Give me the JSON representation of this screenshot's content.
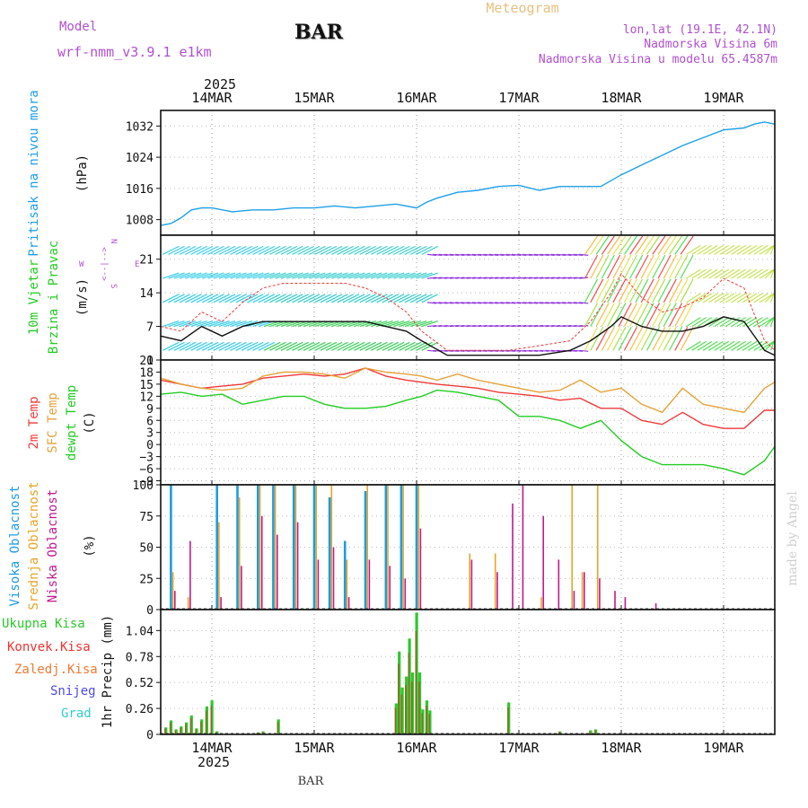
{
  "header": {
    "model_label": "Model",
    "model_name": "wrf-nmm_v3.9.1 e1km",
    "station": "BAR",
    "title": "Meteogram",
    "lonlat": "lon,lat (19.1E, 42.1N)",
    "elevation": "Nadmorska Visina 6m",
    "model_elevation": "Nadmorska Visina u modelu 65.4587m"
  },
  "footer": {
    "station": "BAR",
    "credit": "made by Angel"
  },
  "time_axis": {
    "year": "2025",
    "day_labels": [
      "14MAR",
      "15MAR",
      "16MAR",
      "17MAR",
      "18MAR",
      "19MAR"
    ],
    "day_start": 13.5,
    "day_end": 19.5
  },
  "colors": {
    "pressure": "#1ea0e6",
    "temp2m": "#ee3a3a",
    "sfc_temp": "#e6a23a",
    "dewpt": "#22cc22",
    "cloud_high": "#1e9be0",
    "cloud_mid": "#e6a528",
    "cloud_low": "#c21a8c",
    "precip_total": "#2dc82d",
    "precip_conv": "#ee3333",
    "precip_frz": "#ee7a33",
    "precip_snow": "#4b4be6",
    "precip_grad": "#33cccc",
    "wind_purple": "#8a28d8",
    "label_purple": "#b050d0",
    "label_orange": "#e6c080"
  },
  "panels": {
    "pressure": {
      "name": "Pritisak na nivou mora",
      "unit": "(hPa)",
      "ticks": [
        "1008",
        "1016",
        "1024",
        "1032"
      ]
    },
    "wind": {
      "name1": "10m Vjetar",
      "name2": "Brzina i Pravac",
      "unit": "(m/s)",
      "ticks": [
        "0",
        "7",
        "14",
        "21"
      ],
      "compass_w": "W",
      "compass_e": "E",
      "compass_n": "N",
      "compass_s": "S",
      "compass_mid": "<--|-->"
    },
    "temp": {
      "name1": "2m Temp",
      "name2": "SFC Temp",
      "name3": "dewpt Temp",
      "unit": "(C)",
      "ticks": [
        "−9",
        "−6",
        "−3",
        "0",
        "3",
        "6",
        "9",
        "12",
        "15",
        "18",
        "21"
      ]
    },
    "cloud": {
      "name1": "Visoka Oblacnost",
      "name2": "Srednja Oblacnost",
      "name3": "Niska Oblacnost",
      "unit": "(%)",
      "ticks": [
        "0",
        "25",
        "50",
        "75",
        "100"
      ]
    },
    "precip": {
      "name": "1hr Precip (mm)",
      "ticks": [
        "0",
        "0.26",
        "0.52",
        "0.78",
        "1.04"
      ],
      "legend": [
        "Ukupna Kisa",
        "Konvek.Kisa",
        "Zaledj.Kisa",
        "Snijeg",
        "Grad"
      ]
    }
  },
  "chart_data": [
    {
      "type": "line",
      "title": "Pritisak na nivou mora",
      "ylabel": "(hPa)",
      "ylim": [
        1004,
        1036
      ],
      "x": [
        13.5,
        13.6,
        13.7,
        13.8,
        13.9,
        14.0,
        14.2,
        14.4,
        14.6,
        14.8,
        15.0,
        15.2,
        15.4,
        15.6,
        15.8,
        16.0,
        16.1,
        16.2,
        16.4,
        16.6,
        16.8,
        17.0,
        17.2,
        17.4,
        17.6,
        17.8,
        18.0,
        18.2,
        18.4,
        18.6,
        18.8,
        19.0,
        19.2,
        19.3,
        19.4,
        19.5
      ],
      "series": [
        {
          "values": [
            1006.5,
            1007,
            1008.5,
            1010.5,
            1011,
            1011,
            1010,
            1010.5,
            1010.5,
            1011,
            1011,
            1011.5,
            1011,
            1011.5,
            1012,
            1011,
            1012.5,
            1013.5,
            1015,
            1015.5,
            1016.5,
            1016.8,
            1015.5,
            1016.5,
            1016.5,
            1016.5,
            1019.5,
            1022,
            1024.5,
            1027,
            1029,
            1031,
            1031.5,
            1032.5,
            1033,
            1032.5
          ]
        }
      ]
    },
    {
      "type": "line",
      "title": "10m Vjetar Brzina i Pravac",
      "ylabel": "(m/s)",
      "ylim": [
        0,
        26
      ],
      "x": [
        13.5,
        13.7,
        13.9,
        14.1,
        14.3,
        14.5,
        14.7,
        14.9,
        15.1,
        15.3,
        15.5,
        15.7,
        15.9,
        16.05,
        16.3,
        16.6,
        16.9,
        17.2,
        17.5,
        17.7,
        17.9,
        18.0,
        18.2,
        18.4,
        18.6,
        18.8,
        19.0,
        19.2,
        19.4,
        19.5
      ],
      "series": [
        {
          "name": "speed",
          "values": [
            5,
            4,
            7,
            5,
            7,
            8,
            8,
            8,
            8,
            8,
            8,
            7,
            6,
            4,
            1,
            1,
            1,
            1,
            2,
            4,
            7,
            9,
            7,
            6,
            6,
            7,
            9,
            8,
            2,
            1
          ]
        },
        {
          "name": "gust",
          "values": [
            7,
            6,
            10,
            8,
            12,
            15,
            16,
            16,
            16,
            16,
            15,
            13,
            10,
            6,
            2,
            2,
            2,
            3,
            4,
            8,
            14,
            18,
            13,
            10,
            11,
            13,
            17,
            15,
            4,
            2
          ]
        }
      ]
    },
    {
      "type": "line",
      "title": "2m Temp / SFC Temp / dewpt Temp",
      "ylabel": "(C)",
      "ylim": [
        -10,
        21
      ],
      "x": [
        13.5,
        13.7,
        13.9,
        14.1,
        14.3,
        14.5,
        14.7,
        14.9,
        15.1,
        15.3,
        15.5,
        15.7,
        15.9,
        16.05,
        16.2,
        16.4,
        16.6,
        16.8,
        17.0,
        17.2,
        17.4,
        17.6,
        17.8,
        18.0,
        18.2,
        18.4,
        18.6,
        18.8,
        19.0,
        19.2,
        19.4,
        19.5
      ],
      "series": [
        {
          "name": "2m Temp",
          "values": [
            16,
            15,
            14,
            14.5,
            15,
            16.5,
            17,
            17.5,
            17,
            17.5,
            19,
            17,
            16,
            15.5,
            15,
            14.5,
            14,
            13,
            12.5,
            12,
            11,
            11.5,
            9,
            9,
            6,
            5,
            8,
            5,
            4,
            4,
            8.5,
            8.5
          ]
        },
        {
          "name": "SFC Temp",
          "values": [
            16.5,
            15,
            14,
            13.5,
            14,
            17,
            18,
            18,
            17.5,
            16.5,
            19,
            18,
            17.5,
            17,
            16,
            17.5,
            16,
            15,
            14,
            13,
            13.5,
            16,
            13,
            14,
            10,
            8,
            14,
            10,
            9,
            8,
            14,
            15.5
          ]
        },
        {
          "name": "dewpt Temp",
          "values": [
            12.5,
            13,
            12,
            12.5,
            10,
            11,
            12,
            12,
            10,
            9,
            9,
            9.5,
            11,
            12,
            13.5,
            13,
            12,
            11,
            7,
            7,
            6,
            4,
            6,
            1,
            -3,
            -5,
            -5,
            -5,
            -6,
            -7.5,
            -4,
            -0.5
          ]
        }
      ]
    },
    {
      "type": "bar",
      "title": "Visoka / Srednja / Niska Oblacnost",
      "ylabel": "(%)",
      "ylim": [
        0,
        100
      ],
      "x": [
        13.6,
        13.75,
        14.05,
        14.25,
        14.45,
        14.6,
        14.8,
        15.0,
        15.15,
        15.3,
        15.5,
        15.7,
        15.85,
        16.0,
        16.5,
        16.75,
        16.9,
        17.0,
        17.2,
        17.35,
        17.5,
        17.6,
        17.75,
        17.9,
        18.0,
        18.3
      ],
      "series": [
        {
          "name": "Visoka Oblacnost",
          "values": [
            100,
            0,
            100,
            100,
            100,
            100,
            100,
            100,
            90,
            55,
            95,
            100,
            100,
            100,
            0,
            0,
            0,
            0,
            0,
            0,
            0,
            0,
            0,
            0,
            0,
            0
          ]
        },
        {
          "name": "Srednja Oblacnost",
          "values": [
            30,
            10,
            70,
            90,
            100,
            100,
            100,
            100,
            100,
            40,
            100,
            100,
            100,
            100,
            45,
            45,
            0,
            0,
            10,
            0,
            100,
            30,
            100,
            0,
            0,
            0
          ]
        },
        {
          "name": "Niska Oblacnost",
          "values": [
            15,
            55,
            10,
            35,
            75,
            60,
            70,
            40,
            50,
            10,
            40,
            35,
            25,
            65,
            40,
            30,
            85,
            100,
            75,
            40,
            15,
            30,
            25,
            15,
            10,
            5
          ]
        }
      ]
    },
    {
      "type": "bar",
      "title": "1hr Precip",
      "ylabel": "(mm)",
      "ylim": [
        0,
        1.25
      ],
      "x": [
        13.55,
        13.6,
        13.65,
        13.7,
        13.75,
        13.8,
        13.85,
        13.9,
        13.95,
        14.0,
        14.05,
        14.45,
        14.5,
        14.65,
        15.8,
        15.83,
        15.86,
        15.9,
        15.93,
        15.96,
        16.0,
        16.03,
        16.06,
        16.1,
        16.13,
        16.16,
        16.2,
        16.9,
        17.25,
        17.35,
        17.4,
        17.7,
        17.75
      ],
      "series": [
        {
          "name": "Ukupna Kisa",
          "values": [
            0.07,
            0.14,
            0.05,
            0.08,
            0.12,
            0.19,
            0.06,
            0.15,
            0.28,
            0.34,
            0.03,
            0.02,
            0.03,
            0.15,
            0.31,
            0.83,
            0.47,
            0.58,
            0.96,
            0.62,
            1.22,
            0.62,
            0.25,
            0.34,
            0.24,
            0,
            0,
            0.32,
            0.01,
            0.01,
            0.03,
            0.04,
            0.05
          ]
        }
      ]
    }
  ]
}
